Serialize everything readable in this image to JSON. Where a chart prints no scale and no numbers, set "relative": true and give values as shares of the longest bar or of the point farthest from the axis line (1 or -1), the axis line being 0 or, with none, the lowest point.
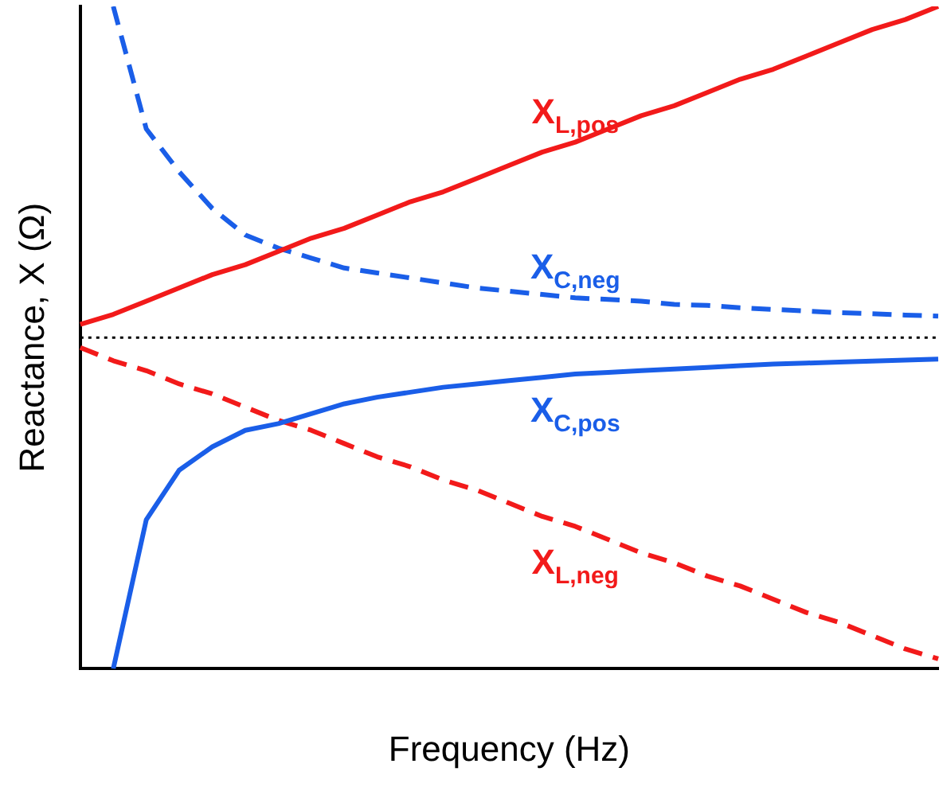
{
  "chart_data": {
    "type": "line",
    "relative": true,
    "xlabel": "Frequency (Hz)",
    "ylabel": "Reactance, X (Ω)",
    "categories": [
      null,
      null,
      null,
      null,
      null,
      null,
      null,
      null,
      null,
      null,
      null,
      null,
      null,
      null,
      null,
      null,
      null,
      null,
      null,
      null,
      null,
      null,
      null,
      null,
      null,
      null,
      null
    ],
    "grid": false,
    "legend": false,
    "marker": "none",
    "ref_lines": [
      {
        "axis": "y",
        "value": 0,
        "color": "#000000",
        "line_style": "dotted"
      }
    ],
    "series": [
      {
        "name": "X$_{L,pos}$",
        "color": "#f21a1a",
        "line_style": "solid",
        "values": [
          0.04,
          0.07,
          0.11,
          0.15,
          0.19,
          0.22,
          0.26,
          0.3,
          0.33,
          0.37,
          0.41,
          0.44,
          0.48,
          0.52,
          0.56,
          0.59,
          0.63,
          0.67,
          0.7,
          0.74,
          0.78,
          0.81,
          0.85,
          0.89,
          0.93,
          0.96,
          1.0
        ]
      },
      {
        "name": "X$_{C,neg}$",
        "color": "#1a5ee8",
        "line_style": "dashed",
        "values": [
          null,
          1.0,
          0.63,
          0.5,
          0.39,
          0.31,
          0.27,
          0.24,
          0.21,
          0.195,
          0.18,
          0.165,
          0.15,
          0.14,
          0.13,
          0.12,
          0.115,
          0.11,
          0.1,
          0.097,
          0.09,
          0.085,
          0.08,
          0.075,
          0.072,
          0.068,
          0.065
        ]
      },
      {
        "name": "X$_{C,pos}$",
        "color": "#1a5ee8",
        "line_style": "solid",
        "values": [
          null,
          -1.0,
          -0.55,
          -0.4,
          -0.33,
          -0.28,
          -0.26,
          -0.23,
          -0.2,
          -0.18,
          -0.165,
          -0.15,
          -0.14,
          -0.13,
          -0.12,
          -0.11,
          -0.105,
          -0.1,
          -0.095,
          -0.09,
          -0.085,
          -0.08,
          -0.077,
          -0.074,
          -0.071,
          -0.068,
          -0.065
        ]
      },
      {
        "name": "X$_{L,neg}$",
        "color": "#f21a1a",
        "line_style": "dashed",
        "values": [
          -0.03,
          -0.07,
          -0.1,
          -0.14,
          -0.17,
          -0.21,
          -0.25,
          -0.28,
          -0.32,
          -0.36,
          -0.39,
          -0.43,
          -0.46,
          -0.5,
          -0.54,
          -0.57,
          -0.61,
          -0.65,
          -0.68,
          -0.72,
          -0.75,
          -0.79,
          -0.83,
          -0.86,
          -0.9,
          -0.94,
          -0.97
        ]
      }
    ]
  }
}
